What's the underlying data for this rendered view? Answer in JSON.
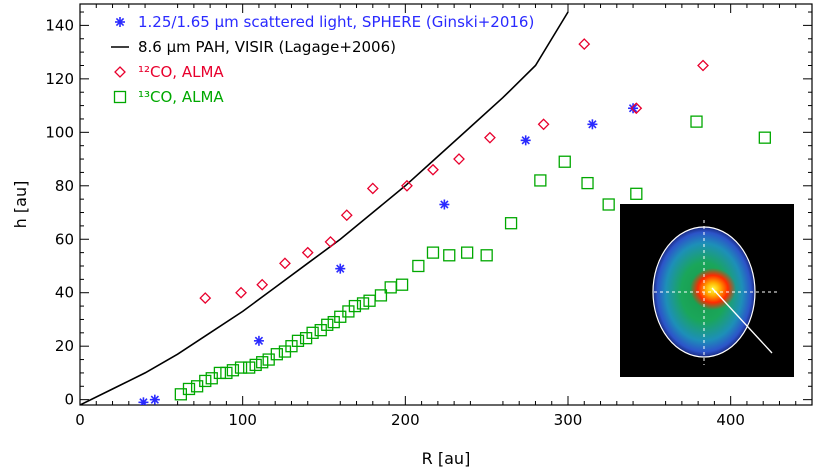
{
  "chart_data": {
    "type": "scatter",
    "xlabel": "R [au]",
    "ylabel": "h [au]",
    "xlim": [
      0,
      450
    ],
    "ylim": [
      -2,
      148
    ],
    "xticks": [
      0,
      100,
      200,
      300,
      400
    ],
    "yticks": [
      0,
      20,
      40,
      60,
      80,
      100,
      120,
      140
    ],
    "grid": false,
    "legend_position": "top-left",
    "series": [
      {
        "name": "1.25/1.65 μm scattered light, SPHERE (Ginski+2016)",
        "marker": "asterisk",
        "color": "#2a2aff",
        "points": [
          [
            39,
            -1
          ],
          [
            46,
            0
          ],
          [
            110,
            22
          ],
          [
            160,
            49
          ],
          [
            224,
            73
          ],
          [
            274,
            97
          ],
          [
            315,
            103
          ],
          [
            340,
            109
          ]
        ]
      },
      {
        "name": "8.6 μm PAH, VISIR (Lagage+2006)",
        "marker": "line",
        "color": "#000000",
        "points": [
          [
            0,
            -2
          ],
          [
            20,
            4
          ],
          [
            40,
            10
          ],
          [
            60,
            17
          ],
          [
            80,
            25
          ],
          [
            100,
            33
          ],
          [
            120,
            42
          ],
          [
            140,
            51
          ],
          [
            160,
            60
          ],
          [
            180,
            70
          ],
          [
            200,
            80
          ],
          [
            220,
            91
          ],
          [
            240,
            102
          ],
          [
            260,
            113
          ],
          [
            280,
            125
          ],
          [
            300,
            145
          ]
        ]
      },
      {
        "name": "¹²CO, ALMA",
        "marker": "diamond",
        "color": "#e8002d",
        "points": [
          [
            77,
            38
          ],
          [
            99,
            40
          ],
          [
            112,
            43
          ],
          [
            126,
            51
          ],
          [
            140,
            55
          ],
          [
            154,
            59
          ],
          [
            164,
            69
          ],
          [
            180,
            79
          ],
          [
            201,
            80
          ],
          [
            217,
            86
          ],
          [
            233,
            90
          ],
          [
            252,
            98
          ],
          [
            285,
            103
          ],
          [
            310,
            133
          ],
          [
            342,
            109
          ],
          [
            383,
            125
          ]
        ]
      },
      {
        "name": "¹³CO, ALMA",
        "marker": "square",
        "color": "#00a800",
        "points": [
          [
            62,
            2
          ],
          [
            67,
            4
          ],
          [
            72,
            5
          ],
          [
            77,
            7
          ],
          [
            81,
            8
          ],
          [
            86,
            10
          ],
          [
            90,
            10
          ],
          [
            94,
            11
          ],
          [
            99,
            12
          ],
          [
            104,
            12
          ],
          [
            108,
            13
          ],
          [
            112,
            14
          ],
          [
            116,
            15
          ],
          [
            121,
            17
          ],
          [
            126,
            18
          ],
          [
            130,
            20
          ],
          [
            134,
            22
          ],
          [
            139,
            23
          ],
          [
            143,
            25
          ],
          [
            148,
            26
          ],
          [
            152,
            28
          ],
          [
            156,
            29
          ],
          [
            160,
            31
          ],
          [
            165,
            33
          ],
          [
            169,
            35
          ],
          [
            174,
            36
          ],
          [
            178,
            37
          ],
          [
            185,
            39
          ],
          [
            191,
            42
          ],
          [
            198,
            43
          ],
          [
            208,
            50
          ],
          [
            217,
            55
          ],
          [
            227,
            54
          ],
          [
            238,
            55
          ],
          [
            250,
            54
          ],
          [
            265,
            66
          ],
          [
            283,
            82
          ],
          [
            298,
            89
          ],
          [
            312,
            81
          ],
          [
            325,
            73
          ],
          [
            342,
            77
          ],
          [
            379,
            104
          ],
          [
            421,
            98
          ]
        ]
      }
    ],
    "inset": {
      "type": "image",
      "description_icon": "disk-emission-map-icon"
    }
  }
}
